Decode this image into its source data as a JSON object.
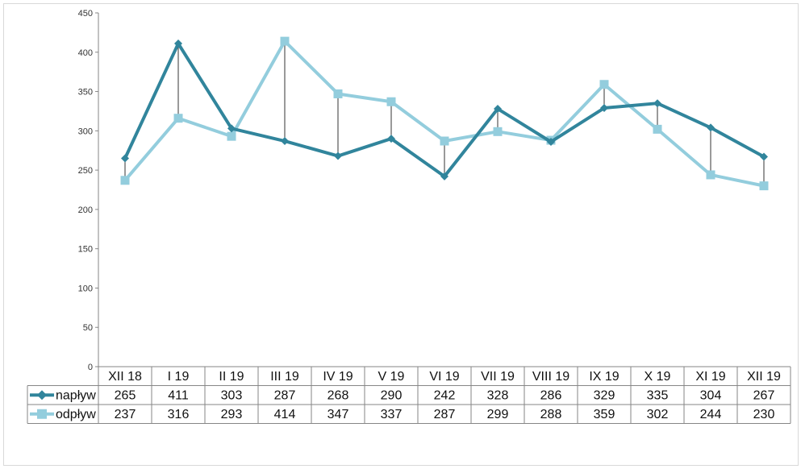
{
  "chart_data": {
    "type": "line",
    "categories": [
      "XII 18",
      "I 19",
      "II 19",
      "III 19",
      "IV 19",
      "V 19",
      "VI 19",
      "VII 19",
      "VIII 19",
      "IX 19",
      "X 19",
      "XI 19",
      "XII 19"
    ],
    "series": [
      {
        "name": "napływ",
        "color": "#31859C",
        "marker": "diamond",
        "values": [
          265,
          411,
          303,
          287,
          268,
          290,
          242,
          328,
          286,
          329,
          335,
          304,
          267
        ]
      },
      {
        "name": "odpływ",
        "color": "#93CDDD",
        "marker": "square",
        "values": [
          237,
          316,
          293,
          414,
          347,
          337,
          287,
          299,
          288,
          359,
          302,
          244,
          230
        ]
      }
    ],
    "ylim": [
      0,
      450
    ],
    "yticks": [
      0,
      50,
      100,
      150,
      200,
      250,
      300,
      350,
      400,
      450
    ],
    "drop_lines": true,
    "data_table": true,
    "gridlines": false,
    "title": "",
    "xlabel": "",
    "ylabel": ""
  }
}
